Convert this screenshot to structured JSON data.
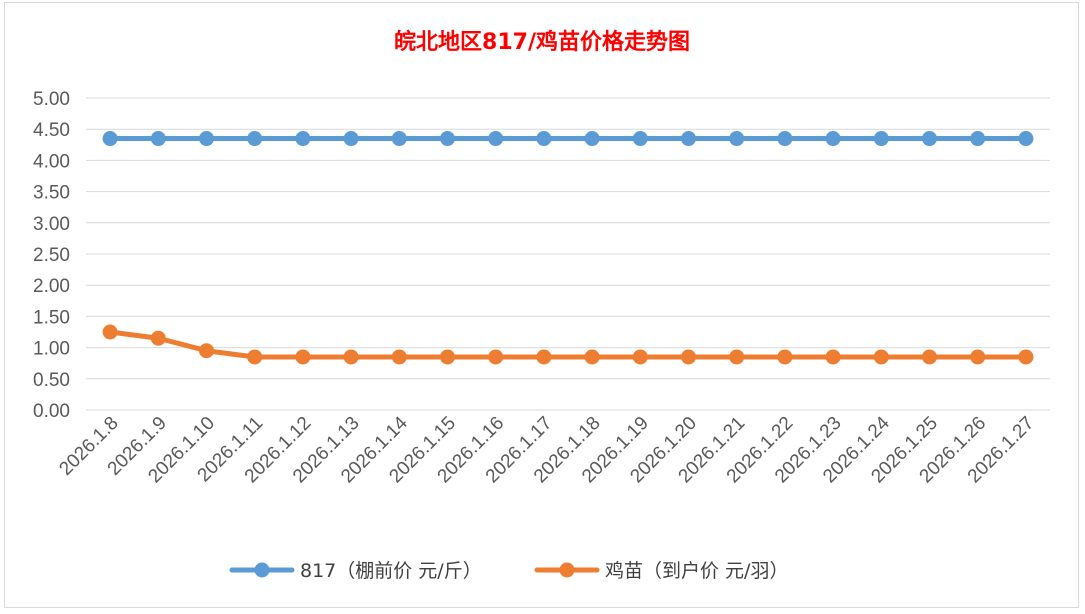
{
  "colors": {
    "title": "#ff0000",
    "grid": "#d9d9d9",
    "tick_text": "#595959",
    "series_817": "#5b9bd5",
    "series_chick": "#ed7d31"
  },
  "chart_data": {
    "type": "line",
    "title": "皖北地区817/鸡苗价格走势图",
    "xlabel": "",
    "ylabel": "",
    "ylim": [
      0,
      5
    ],
    "ytick_step": 0.5,
    "grid": true,
    "legend_position": "bottom",
    "categories": [
      "2026.1.8",
      "2026.1.9",
      "2026.1.10",
      "2026.1.11",
      "2026.1.12",
      "2026.1.13",
      "2026.1.14",
      "2026.1.15",
      "2026.1.16",
      "2026.1.17",
      "2026.1.18",
      "2026.1.19",
      "2026.1.20",
      "2026.1.21",
      "2026.1.22",
      "2026.1.23",
      "2026.1.24",
      "2026.1.25",
      "2026.1.26",
      "2026.1.27"
    ],
    "yticks": [
      "0.00",
      "0.50",
      "1.00",
      "1.50",
      "2.00",
      "2.50",
      "3.00",
      "3.50",
      "4.00",
      "4.50",
      "5.00"
    ],
    "series": [
      {
        "name": "817（棚前价 元/斤）",
        "color": "#5b9bd5",
        "values": [
          4.35,
          4.35,
          4.35,
          4.35,
          4.35,
          4.35,
          4.35,
          4.35,
          4.35,
          4.35,
          4.35,
          4.35,
          4.35,
          4.35,
          4.35,
          4.35,
          4.35,
          4.35,
          4.35,
          4.35
        ]
      },
      {
        "name": "鸡苗（到户价 元/羽）",
        "color": "#ed7d31",
        "values": [
          1.25,
          1.15,
          0.95,
          0.85,
          0.85,
          0.85,
          0.85,
          0.85,
          0.85,
          0.85,
          0.85,
          0.85,
          0.85,
          0.85,
          0.85,
          0.85,
          0.85,
          0.85,
          0.85,
          0.85
        ]
      }
    ]
  }
}
